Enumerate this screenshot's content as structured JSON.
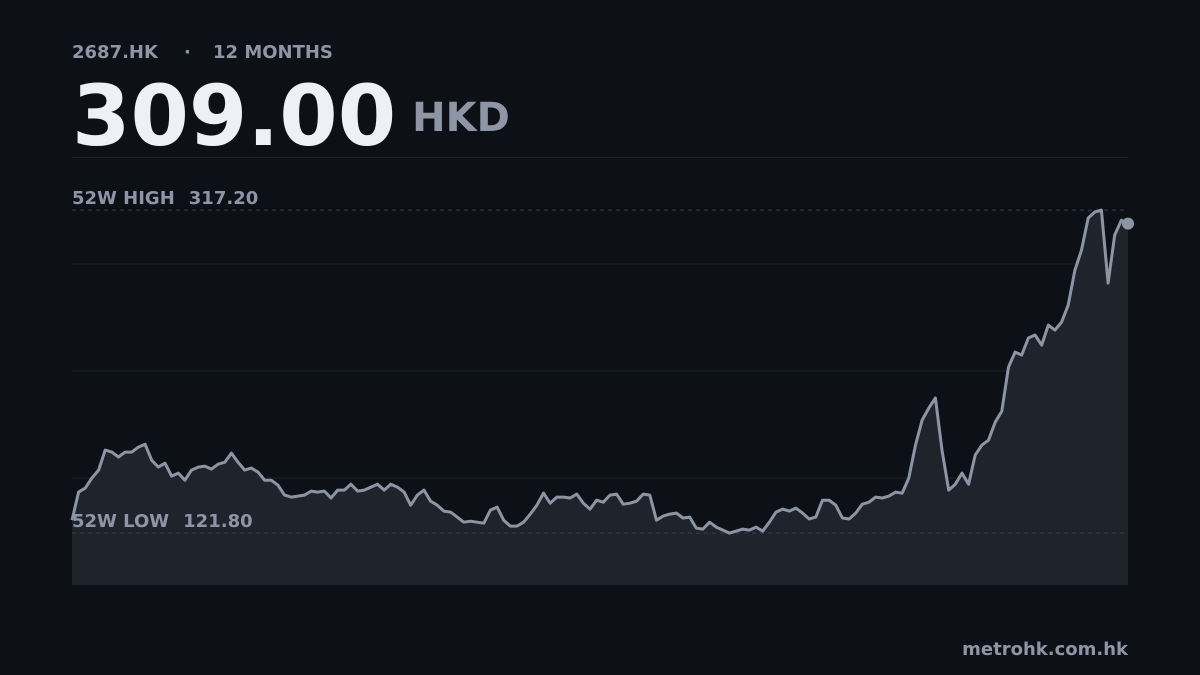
{
  "chart_data": {
    "type": "line",
    "ticker": "2687.HK",
    "separator": "·",
    "period": "12 MONTHS",
    "last": {
      "value": 309.0,
      "label": "309.00"
    },
    "currency": "HKD",
    "reference_lines": [
      {
        "label": "52W HIGH",
        "value": 317.2,
        "value_label": "317.20"
      },
      {
        "label": "52W LOW",
        "value": 121.8,
        "value_label": "121.80"
      }
    ],
    "series": [
      {
        "color": "#8d95a5",
        "values": [
          129.6,
          146.6,
          149.0,
          155.1,
          159.9,
          172.0,
          170.8,
          167.8,
          170.8,
          170.8,
          173.8,
          175.6,
          165.9,
          161.7,
          164.1,
          156.3,
          158.1,
          153.8,
          159.9,
          161.7,
          162.3,
          160.5,
          163.5,
          164.7,
          170.2,
          164.7,
          159.9,
          161.1,
          158.7,
          153.8,
          153.8,
          150.8,
          144.8,
          143.6,
          144.2,
          144.8,
          147.2,
          146.6,
          147.2,
          143.0,
          147.8,
          147.8,
          151.4,
          147.2,
          147.8,
          149.6,
          151.4,
          147.8,
          151.4,
          149.6,
          146.6,
          138.7,
          144.8,
          147.8,
          141.1,
          138.7,
          135.1,
          134.5,
          131.5,
          128.4,
          129.0,
          128.4,
          127.8,
          135.7,
          137.5,
          129.6,
          126.0,
          126.0,
          128.4,
          133.3,
          138.7,
          146.0,
          139.9,
          143.6,
          143.6,
          143.0,
          145.4,
          139.9,
          136.3,
          141.7,
          140.5,
          144.8,
          145.4,
          139.3,
          139.9,
          141.1,
          145.4,
          144.8,
          129.6,
          132.1,
          133.3,
          133.9,
          130.9,
          131.5,
          124.8,
          124.2,
          128.4,
          125.4,
          123.6,
          121.8,
          123.0,
          124.2,
          123.6,
          125.4,
          123.0,
          128.4,
          134.5,
          136.3,
          135.1,
          136.9,
          133.9,
          130.3,
          131.5,
          141.7,
          141.7,
          138.7,
          130.9,
          130.3,
          133.9,
          139.3,
          140.5,
          143.6,
          143.0,
          144.2,
          146.6,
          146.0,
          155.1,
          175.0,
          190.1,
          197.4,
          203.5,
          172.0,
          147.8,
          151.4,
          158.1,
          151.4,
          169.0,
          175.0,
          178.0,
          188.9,
          195.6,
          222.2,
          231.3,
          229.5,
          239.8,
          241.6,
          235.5,
          247.6,
          244.6,
          249.4,
          259.7,
          280.9,
          293.0,
          312.4,
          316.0,
          317.2,
          273.0,
          302.1,
          311.1,
          309.0
        ]
      }
    ],
    "ylim": [
      90.4,
      349.3
    ],
    "source": "metrohk.com.hk"
  }
}
